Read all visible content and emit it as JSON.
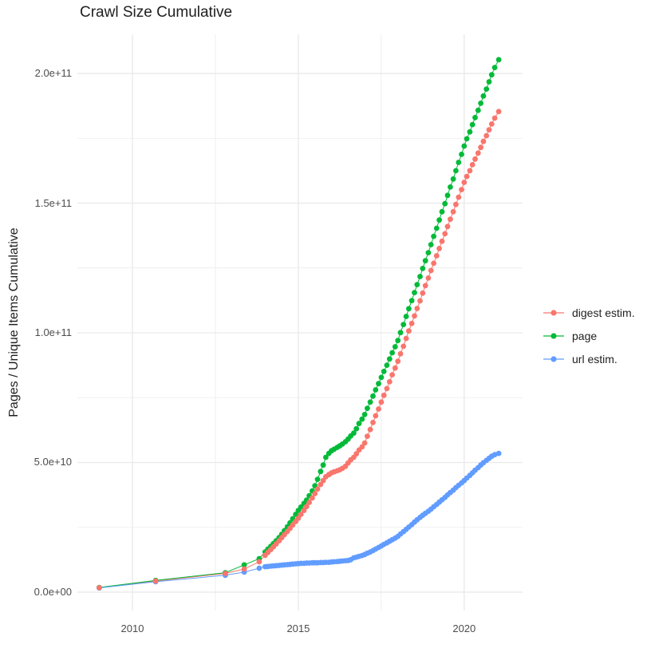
{
  "title": "Crawl Size Cumulative",
  "axes": {
    "x": {
      "ticks": [
        {
          "value": 2010,
          "label": "2010"
        },
        {
          "value": 2015,
          "label": "2015"
        },
        {
          "value": 2020,
          "label": "2020"
        }
      ],
      "minor": [
        2012.5,
        2017.5
      ]
    },
    "y": {
      "title": "Pages / Unique Items Cumulative",
      "ticks": [
        {
          "value": 0,
          "label": "0.0e+00"
        },
        {
          "value": 50,
          "label": "5.0e+10"
        },
        {
          "value": 100,
          "label": "1.0e+11"
        },
        {
          "value": 150,
          "label": "1.5e+11"
        },
        {
          "value": 200,
          "label": "2.0e+11"
        }
      ],
      "minor": [
        25,
        75,
        125,
        175
      ]
    }
  },
  "legend": {
    "items": [
      {
        "label": "digest estim.",
        "color": "#F8766D"
      },
      {
        "label": "page",
        "color": "#00BA38"
      },
      {
        "label": "url estim.",
        "color": "#619CFF"
      }
    ]
  },
  "style": {
    "grid_color": "#e9e9e9",
    "tick_label_color": "#4d4d4d",
    "text_color": "#1f1f1f",
    "background": "#ffffff"
  },
  "chart_data": {
    "type": "line",
    "title": "Crawl Size Cumulative",
    "xlabel": "",
    "ylabel": "Pages / Unique Items Cumulative",
    "x_unit": "year (decimal)",
    "value_unit": "1e9 pages / items (values below are billions)",
    "xlim": [
      2008.34,
      2021.76
    ],
    "ylim_e9": [
      -7.1,
      215.1
    ],
    "grid": true,
    "legend_position": "right",
    "series": [
      {
        "name": "digest estim.",
        "color": "#F8766D",
        "points": [
          [
            2009.0,
            1.7
          ],
          [
            2010.7,
            4.3
          ],
          [
            2012.8,
            7.2
          ],
          [
            2013.37,
            8.9
          ],
          [
            2013.82,
            11.7
          ],
          [
            2014.0,
            14.2
          ],
          [
            2014.08,
            15.3
          ],
          [
            2014.17,
            16.4
          ],
          [
            2014.25,
            17.5
          ],
          [
            2014.33,
            18.6
          ],
          [
            2014.42,
            19.8
          ],
          [
            2014.5,
            21.0
          ],
          [
            2014.58,
            22.2
          ],
          [
            2014.67,
            23.4
          ],
          [
            2014.75,
            24.6
          ],
          [
            2014.83,
            25.9
          ],
          [
            2014.92,
            27.2
          ],
          [
            2015.0,
            28.5
          ],
          [
            2015.08,
            30.0
          ],
          [
            2015.17,
            31.5
          ],
          [
            2015.25,
            33.0
          ],
          [
            2015.33,
            34.6
          ],
          [
            2015.42,
            36.3
          ],
          [
            2015.5,
            38.0
          ],
          [
            2015.58,
            39.7
          ],
          [
            2015.67,
            41.5
          ],
          [
            2015.75,
            43.0
          ],
          [
            2015.83,
            44.5
          ],
          [
            2015.92,
            45.3
          ],
          [
            2016.0,
            46.0
          ],
          [
            2016.08,
            46.4
          ],
          [
            2016.17,
            46.8
          ],
          [
            2016.25,
            47.2
          ],
          [
            2016.33,
            47.7
          ],
          [
            2016.42,
            48.5
          ],
          [
            2016.5,
            49.8
          ],
          [
            2016.58,
            51.0
          ],
          [
            2016.67,
            52.0
          ],
          [
            2016.75,
            53.3
          ],
          [
            2016.83,
            54.8
          ],
          [
            2016.92,
            56.0
          ],
          [
            2017.0,
            57.5
          ],
          [
            2017.08,
            60.1
          ],
          [
            2017.17,
            62.7
          ],
          [
            2017.25,
            65.4
          ],
          [
            2017.33,
            68.0
          ],
          [
            2017.42,
            70.6
          ],
          [
            2017.5,
            73.3
          ],
          [
            2017.58,
            75.9
          ],
          [
            2017.67,
            78.5
          ],
          [
            2017.75,
            81.1
          ],
          [
            2017.83,
            83.8
          ],
          [
            2017.92,
            86.4
          ],
          [
            2018.0,
            89.0
          ],
          [
            2018.08,
            91.9
          ],
          [
            2018.17,
            94.8
          ],
          [
            2018.25,
            97.8
          ],
          [
            2018.33,
            100.7
          ],
          [
            2018.42,
            103.6
          ],
          [
            2018.5,
            106.5
          ],
          [
            2018.58,
            109.4
          ],
          [
            2018.67,
            112.3
          ],
          [
            2018.75,
            115.3
          ],
          [
            2018.83,
            118.2
          ],
          [
            2018.92,
            121.1
          ],
          [
            2019.0,
            124.0
          ],
          [
            2019.08,
            126.8
          ],
          [
            2019.17,
            129.7
          ],
          [
            2019.25,
            132.5
          ],
          [
            2019.33,
            135.3
          ],
          [
            2019.42,
            138.2
          ],
          [
            2019.5,
            141.0
          ],
          [
            2019.58,
            143.8
          ],
          [
            2019.67,
            146.7
          ],
          [
            2019.75,
            149.5
          ],
          [
            2019.83,
            152.3
          ],
          [
            2019.92,
            155.2
          ],
          [
            2020.0,
            158.0
          ],
          [
            2020.08,
            160.3
          ],
          [
            2020.17,
            162.5
          ],
          [
            2020.25,
            164.8
          ],
          [
            2020.33,
            167.0
          ],
          [
            2020.42,
            169.3
          ],
          [
            2020.5,
            171.5
          ],
          [
            2020.58,
            173.8
          ],
          [
            2020.67,
            176.0
          ],
          [
            2020.75,
            178.3
          ],
          [
            2020.83,
            180.5
          ],
          [
            2020.92,
            182.8
          ],
          [
            2021.04,
            185.3
          ]
        ]
      },
      {
        "name": "page",
        "color": "#00BA38",
        "points": [
          [
            2009.0,
            1.8
          ],
          [
            2010.7,
            4.5
          ],
          [
            2012.8,
            7.5
          ],
          [
            2013.37,
            10.5
          ],
          [
            2013.82,
            12.9
          ],
          [
            2014.0,
            15.5
          ],
          [
            2014.08,
            16.6
          ],
          [
            2014.17,
            17.6
          ],
          [
            2014.25,
            18.7
          ],
          [
            2014.33,
            19.8
          ],
          [
            2014.42,
            21.0
          ],
          [
            2014.5,
            22.3
          ],
          [
            2014.58,
            23.7
          ],
          [
            2014.67,
            25.2
          ],
          [
            2014.75,
            26.7
          ],
          [
            2014.83,
            28.3
          ],
          [
            2014.92,
            30.0
          ],
          [
            2015.0,
            31.5
          ],
          [
            2015.08,
            32.8
          ],
          [
            2015.17,
            34.2
          ],
          [
            2015.25,
            35.5
          ],
          [
            2015.33,
            37.2
          ],
          [
            2015.42,
            39.0
          ],
          [
            2015.5,
            41.0
          ],
          [
            2015.58,
            43.5
          ],
          [
            2015.67,
            46.5
          ],
          [
            2015.75,
            49.0
          ],
          [
            2015.83,
            52.0
          ],
          [
            2015.92,
            53.5
          ],
          [
            2016.0,
            54.5
          ],
          [
            2016.08,
            55.1
          ],
          [
            2016.17,
            55.8
          ],
          [
            2016.25,
            56.4
          ],
          [
            2016.33,
            57.1
          ],
          [
            2016.42,
            58.0
          ],
          [
            2016.5,
            59.0
          ],
          [
            2016.58,
            60.2
          ],
          [
            2016.67,
            61.3
          ],
          [
            2016.75,
            63.0
          ],
          [
            2016.83,
            65.0
          ],
          [
            2016.92,
            66.7
          ],
          [
            2017.0,
            68.5
          ],
          [
            2017.08,
            70.9
          ],
          [
            2017.17,
            73.3
          ],
          [
            2017.25,
            75.6
          ],
          [
            2017.33,
            78.0
          ],
          [
            2017.42,
            80.4
          ],
          [
            2017.5,
            82.8
          ],
          [
            2017.58,
            85.1
          ],
          [
            2017.67,
            87.5
          ],
          [
            2017.75,
            89.9
          ],
          [
            2017.83,
            92.3
          ],
          [
            2017.92,
            94.6
          ],
          [
            2018.0,
            97.0
          ],
          [
            2018.08,
            100.1
          ],
          [
            2018.17,
            103.2
          ],
          [
            2018.25,
            106.3
          ],
          [
            2018.33,
            109.3
          ],
          [
            2018.42,
            112.4
          ],
          [
            2018.5,
            115.5
          ],
          [
            2018.58,
            118.6
          ],
          [
            2018.67,
            121.7
          ],
          [
            2018.75,
            124.8
          ],
          [
            2018.83,
            127.8
          ],
          [
            2018.92,
            130.9
          ],
          [
            2019.0,
            134.0
          ],
          [
            2019.08,
            137.2
          ],
          [
            2019.17,
            140.3
          ],
          [
            2019.25,
            143.5
          ],
          [
            2019.33,
            146.7
          ],
          [
            2019.42,
            149.8
          ],
          [
            2019.5,
            153.0
          ],
          [
            2019.58,
            156.2
          ],
          [
            2019.67,
            159.3
          ],
          [
            2019.75,
            162.5
          ],
          [
            2019.83,
            165.7
          ],
          [
            2019.92,
            168.8
          ],
          [
            2020.0,
            172.0
          ],
          [
            2020.08,
            174.8
          ],
          [
            2020.17,
            177.5
          ],
          [
            2020.25,
            180.3
          ],
          [
            2020.33,
            183.0
          ],
          [
            2020.42,
            185.8
          ],
          [
            2020.5,
            188.5
          ],
          [
            2020.58,
            191.3
          ],
          [
            2020.67,
            194.0
          ],
          [
            2020.75,
            196.8
          ],
          [
            2020.83,
            199.5
          ],
          [
            2020.92,
            202.3
          ],
          [
            2021.04,
            205.3
          ]
        ]
      },
      {
        "name": "url estim.",
        "color": "#619CFF",
        "points": [
          [
            2009.0,
            1.6
          ],
          [
            2010.7,
            4.0
          ],
          [
            2012.8,
            6.5
          ],
          [
            2013.37,
            7.7
          ],
          [
            2013.82,
            9.2
          ],
          [
            2014.0,
            9.8
          ],
          [
            2014.08,
            9.9
          ],
          [
            2014.17,
            10.0
          ],
          [
            2014.25,
            10.1
          ],
          [
            2014.33,
            10.2
          ],
          [
            2014.42,
            10.3
          ],
          [
            2014.5,
            10.4
          ],
          [
            2014.58,
            10.5
          ],
          [
            2014.67,
            10.6
          ],
          [
            2014.75,
            10.7
          ],
          [
            2014.83,
            10.8
          ],
          [
            2014.92,
            10.9
          ],
          [
            2015.0,
            11.0
          ],
          [
            2015.08,
            11.1
          ],
          [
            2015.17,
            11.1
          ],
          [
            2015.25,
            11.2
          ],
          [
            2015.33,
            11.2
          ],
          [
            2015.42,
            11.3
          ],
          [
            2015.5,
            11.3
          ],
          [
            2015.58,
            11.3
          ],
          [
            2015.67,
            11.4
          ],
          [
            2015.75,
            11.4
          ],
          [
            2015.83,
            11.5
          ],
          [
            2015.92,
            11.5
          ],
          [
            2016.0,
            11.6
          ],
          [
            2016.08,
            11.7
          ],
          [
            2016.17,
            11.8
          ],
          [
            2016.25,
            11.9
          ],
          [
            2016.33,
            12.0
          ],
          [
            2016.42,
            12.1
          ],
          [
            2016.5,
            12.2
          ],
          [
            2016.58,
            12.5
          ],
          [
            2016.67,
            13.2
          ],
          [
            2016.75,
            13.5
          ],
          [
            2016.83,
            13.8
          ],
          [
            2016.92,
            14.1
          ],
          [
            2017.0,
            14.5
          ],
          [
            2017.08,
            15.0
          ],
          [
            2017.17,
            15.5
          ],
          [
            2017.25,
            16.0
          ],
          [
            2017.33,
            16.6
          ],
          [
            2017.42,
            17.2
          ],
          [
            2017.5,
            17.8
          ],
          [
            2017.58,
            18.4
          ],
          [
            2017.67,
            19.0
          ],
          [
            2017.75,
            19.6
          ],
          [
            2017.83,
            20.2
          ],
          [
            2017.92,
            20.8
          ],
          [
            2018.0,
            21.5
          ],
          [
            2018.08,
            22.4
          ],
          [
            2018.17,
            23.3
          ],
          [
            2018.25,
            24.2
          ],
          [
            2018.33,
            25.1
          ],
          [
            2018.42,
            26.0
          ],
          [
            2018.5,
            27.0
          ],
          [
            2018.58,
            27.9
          ],
          [
            2018.67,
            28.8
          ],
          [
            2018.75,
            29.6
          ],
          [
            2018.83,
            30.4
          ],
          [
            2018.92,
            31.2
          ],
          [
            2019.0,
            32.0
          ],
          [
            2019.08,
            32.9
          ],
          [
            2019.17,
            33.8
          ],
          [
            2019.25,
            34.7
          ],
          [
            2019.33,
            35.6
          ],
          [
            2019.42,
            36.5
          ],
          [
            2019.5,
            37.5
          ],
          [
            2019.58,
            38.4
          ],
          [
            2019.67,
            39.3
          ],
          [
            2019.75,
            40.3
          ],
          [
            2019.83,
            41.2
          ],
          [
            2019.92,
            42.1
          ],
          [
            2020.0,
            43.0
          ],
          [
            2020.08,
            44.0
          ],
          [
            2020.17,
            45.0
          ],
          [
            2020.25,
            46.0
          ],
          [
            2020.33,
            47.0
          ],
          [
            2020.42,
            48.0
          ],
          [
            2020.5,
            49.0
          ],
          [
            2020.58,
            49.9
          ],
          [
            2020.67,
            50.8
          ],
          [
            2020.75,
            51.6
          ],
          [
            2020.83,
            52.4
          ],
          [
            2020.92,
            53.0
          ],
          [
            2021.04,
            53.5
          ]
        ]
      }
    ]
  }
}
